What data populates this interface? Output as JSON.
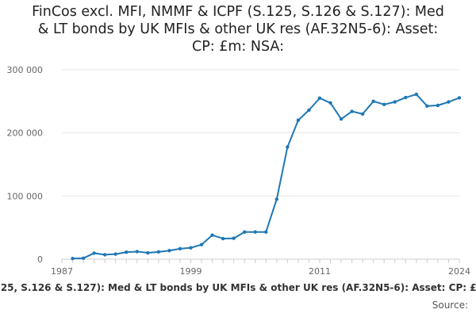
{
  "chart_data": {
    "type": "line",
    "title_lines": [
      "FinCos excl. MFI, NMMF & ICPF (S.125, S.126 & S.127): Med",
      "& LT bonds by UK MFIs & other UK res (AF.32N5-6): Asset:",
      "CP: £m: NSA:"
    ],
    "x_ticks": [
      "1987",
      "1999",
      "2011",
      "2024"
    ],
    "y_ticks": [
      "0",
      "100 000",
      "200 000",
      "300 000"
    ],
    "ylim": [
      0,
      300000
    ],
    "xlim": [
      1987,
      2024
    ],
    "grid": "horizontal",
    "legend_position": "bottom",
    "series": [
      {
        "name": "FinCos excl. MFI, NMMF & ICPF (S.125, S.126 & S.127): Med & LT bonds by UK MFIs & other UK res (AF.32N5-6): Asset: CP: £m: NSA:",
        "color": "#1f77b4",
        "x": [
          1988,
          1989,
          1990,
          1991,
          1992,
          1993,
          1994,
          1995,
          1996,
          1997,
          1998,
          1999,
          2000,
          2001,
          2002,
          2003,
          2004,
          2005,
          2006,
          2007,
          2008,
          2009,
          2010,
          2011,
          2012,
          2013,
          2014,
          2015,
          2016,
          2017,
          2018,
          2019,
          2020,
          2021,
          2022,
          2023,
          2024
        ],
        "values": [
          1000,
          1500,
          9500,
          7000,
          8000,
          11000,
          12000,
          10000,
          11500,
          13500,
          16500,
          18000,
          23000,
          38000,
          32500,
          33000,
          43000,
          43000,
          43000,
          95000,
          177500,
          220000,
          236000,
          255000,
          247500,
          222000,
          234000,
          230000,
          250000,
          245000,
          249000,
          256000,
          261000,
          242500,
          243500,
          249000,
          255500
        ]
      }
    ]
  },
  "source_label": "Source:"
}
